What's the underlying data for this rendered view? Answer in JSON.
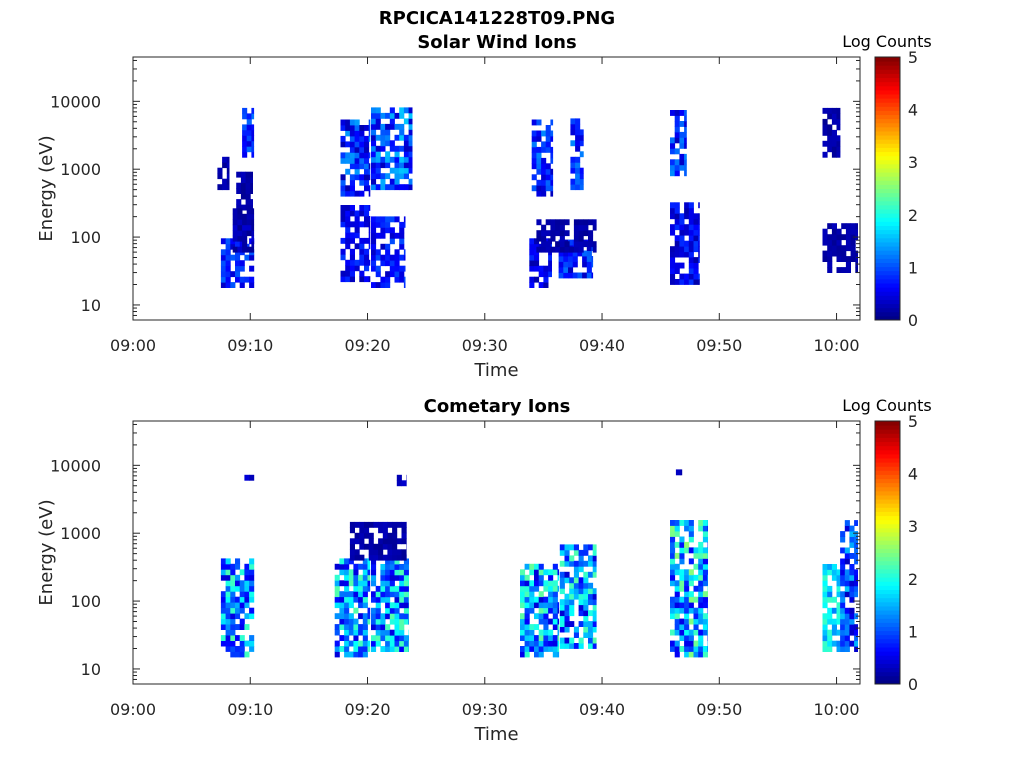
{
  "figure": {
    "title": "RPCICA141228T09.PNG"
  },
  "chart_data": [
    {
      "type": "heatmap",
      "title": "Solar Wind Ions",
      "xlabel": "Time",
      "ylabel": "Energy (eV)",
      "x_ticks": [
        "09:00",
        "09:10",
        "09:20",
        "09:30",
        "09:40",
        "09:50",
        "10:00"
      ],
      "x_range_min": [
        0,
        62
      ],
      "y_scale": "log",
      "y_ticks": [
        "10",
        "100",
        "1000",
        "10000"
      ],
      "y_range": [
        6,
        45000
      ],
      "colorbar": {
        "label": "Log Counts",
        "ticks": [
          "0",
          "1",
          "2",
          "3",
          "4",
          "5"
        ],
        "range": [
          0,
          5
        ],
        "colormap": "jet"
      },
      "grid": false,
      "patches": [
        {
          "t": [
            9.3,
            10.3
          ],
          "e": [
            1500,
            7000
          ],
          "v": [
            0.4,
            1.2
          ]
        },
        {
          "t": [
            7.2,
            8.2
          ],
          "e": [
            500,
            1300
          ],
          "v": [
            0.1,
            0.4
          ]
        },
        {
          "t": [
            8.8,
            10.2
          ],
          "e": [
            250,
            800
          ],
          "v": [
            0.1,
            0.3
          ]
        },
        {
          "t": [
            7.5,
            10.3
          ],
          "e": [
            18,
            90
          ],
          "v": [
            0.3,
            1.1
          ]
        },
        {
          "t": [
            8.5,
            10.3
          ],
          "e": [
            60,
            250
          ],
          "v": [
            0.1,
            0.4
          ]
        },
        {
          "t": [
            17.7,
            20.2
          ],
          "e": [
            400,
            5000
          ],
          "v": [
            0.2,
            1.4
          ]
        },
        {
          "t": [
            20.3,
            23.8
          ],
          "e": [
            500,
            7000
          ],
          "v": [
            0.3,
            1.6
          ]
        },
        {
          "t": [
            17.7,
            20.2
          ],
          "e": [
            22,
            250
          ],
          "v": [
            0.2,
            0.9
          ]
        },
        {
          "t": [
            20.3,
            23.2
          ],
          "e": [
            18,
            180
          ],
          "v": [
            0.3,
            1.0
          ]
        },
        {
          "t": [
            34.0,
            35.8
          ],
          "e": [
            400,
            5000
          ],
          "v": [
            0.3,
            1.3
          ]
        },
        {
          "t": [
            37.3,
            38.4
          ],
          "e": [
            500,
            5000
          ],
          "v": [
            0.4,
            1.3
          ]
        },
        {
          "t": [
            33.8,
            35.7
          ],
          "e": [
            18,
            90
          ],
          "v": [
            0.2,
            0.9
          ]
        },
        {
          "t": [
            36.3,
            39.2
          ],
          "e": [
            25,
            90
          ],
          "v": [
            0.3,
            1.2
          ]
        },
        {
          "t": [
            34.4,
            39.5
          ],
          "e": [
            60,
            160
          ],
          "v": [
            0.1,
            0.3
          ]
        },
        {
          "t": [
            45.8,
            47.2
          ],
          "e": [
            800,
            7000
          ],
          "v": [
            0.3,
            1.3
          ]
        },
        {
          "t": [
            45.8,
            48.3
          ],
          "e": [
            20,
            300
          ],
          "v": [
            0.2,
            0.9
          ]
        },
        {
          "t": [
            58.8,
            60.3
          ],
          "e": [
            1500,
            7000
          ],
          "v": [
            0.1,
            0.3
          ]
        },
        {
          "t": [
            58.8,
            61.8
          ],
          "e": [
            30,
            150
          ],
          "v": [
            0.1,
            0.3
          ]
        }
      ]
    },
    {
      "type": "heatmap",
      "title": "Cometary Ions",
      "xlabel": "Time",
      "ylabel": "Energy (eV)",
      "x_ticks": [
        "09:00",
        "09:10",
        "09:20",
        "09:30",
        "09:40",
        "09:50",
        "10:00"
      ],
      "x_range_min": [
        0,
        62
      ],
      "y_scale": "log",
      "y_ticks": [
        "10",
        "100",
        "1000",
        "10000"
      ],
      "y_range": [
        6,
        45000
      ],
      "colorbar": {
        "label": "Log Counts",
        "ticks": [
          "0",
          "1",
          "2",
          "3",
          "4",
          "5"
        ],
        "range": [
          0,
          5
        ],
        "colormap": "jet"
      },
      "grid": false,
      "patches": [
        {
          "t": [
            9.5,
            10.3
          ],
          "e": [
            5000,
            6500
          ],
          "v": [
            0.2,
            0.5
          ]
        },
        {
          "t": [
            7.5,
            10.3
          ],
          "e": [
            15,
            400
          ],
          "v": [
            0.4,
            2.3
          ]
        },
        {
          "t": [
            17.2,
            20.2
          ],
          "e": [
            15,
            400
          ],
          "v": [
            0.4,
            2.3
          ]
        },
        {
          "t": [
            20.3,
            23.5
          ],
          "e": [
            18,
            400
          ],
          "v": [
            0.4,
            2.3
          ]
        },
        {
          "t": [
            18.5,
            23.3
          ],
          "e": [
            400,
            1400
          ],
          "v": [
            0.1,
            0.3
          ]
        },
        {
          "t": [
            22.5,
            23.3
          ],
          "e": [
            5000,
            7000
          ],
          "v": [
            0.2,
            0.4
          ]
        },
        {
          "t": [
            33.0,
            36.3
          ],
          "e": [
            15,
            300
          ],
          "v": [
            0.4,
            2.4
          ]
        },
        {
          "t": [
            36.4,
            39.5
          ],
          "e": [
            20,
            600
          ],
          "v": [
            0.4,
            2.3
          ]
        },
        {
          "t": [
            45.8,
            49.0
          ],
          "e": [
            15,
            1500
          ],
          "v": [
            0.5,
            2.6
          ]
        },
        {
          "t": [
            46.3,
            46.8
          ],
          "e": [
            6000,
            8000
          ],
          "v": [
            0.2,
            0.4
          ]
        },
        {
          "t": [
            58.8,
            60.3
          ],
          "e": [
            18,
            300
          ],
          "v": [
            1.2,
            2.2
          ]
        },
        {
          "t": [
            60.3,
            61.8
          ],
          "e": [
            18,
            1300
          ],
          "v": [
            0.3,
            1.6
          ]
        }
      ]
    }
  ]
}
